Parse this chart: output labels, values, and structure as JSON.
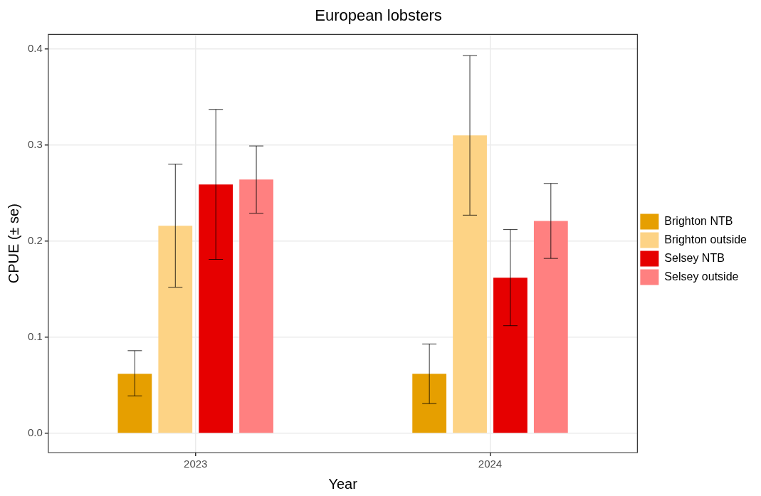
{
  "chart_data": {
    "type": "bar",
    "title": "European lobsters",
    "xlabel": "Year",
    "ylabel": "CPUE (± se)",
    "categories": [
      "2023",
      "2024"
    ],
    "series": [
      {
        "name": "Brighton NTB",
        "color": "#e69f00",
        "values": [
          0.062,
          0.062
        ],
        "errors": [
          [
            0.039,
            0.086
          ],
          [
            0.031,
            0.093
          ]
        ]
      },
      {
        "name": "Brighton outside",
        "color": "#fdd385",
        "values": [
          0.216,
          0.31
        ],
        "errors": [
          [
            0.152,
            0.28
          ],
          [
            0.227,
            0.393
          ]
        ]
      },
      {
        "name": "Selsey NTB",
        "color": "#e60000",
        "values": [
          0.259,
          0.162
        ],
        "errors": [
          [
            0.181,
            0.337
          ],
          [
            0.112,
            0.212
          ]
        ]
      },
      {
        "name": "Selsey outside",
        "color": "#ff8080",
        "values": [
          0.264,
          0.221
        ],
        "errors": [
          [
            0.229,
            0.299
          ],
          [
            0.182,
            0.26
          ]
        ]
      }
    ],
    "ylim": [
      -0.02,
      0.415
    ],
    "yticks": [
      {
        "value": 0,
        "label": "0.0"
      },
      0.1,
      0.2,
      0.3,
      0.4
    ],
    "grid": true,
    "legend": "right"
  }
}
